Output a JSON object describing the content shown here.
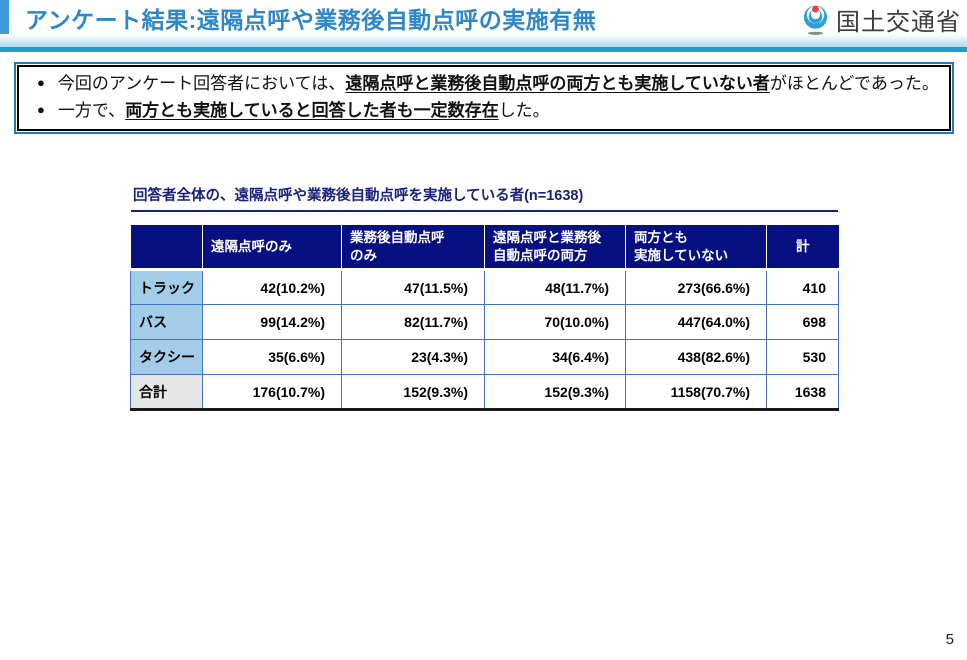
{
  "header": {
    "title": "アンケート結果:遠隔点呼や業務後自動点呼の実施有無",
    "logo_text": "国土交通省"
  },
  "summary": {
    "bullet_char": "●",
    "bullets": [
      {
        "pre": "今回のアンケート回答者においては、",
        "emphasis": "遠隔点呼と業務後自動点呼の両方とも実施していない者",
        "post": "がほとんどであった。"
      },
      {
        "pre": "一方で、",
        "emphasis": "両方とも実施していると回答した者も一定数存在",
        "post": "した。"
      }
    ]
  },
  "table": {
    "caption": "回答者全体の、遠隔点呼や業務後自動点呼を実施している者(n=1638)",
    "columns": [
      "",
      "遠隔点呼のみ",
      "業務後自動点呼\nのみ",
      "遠隔点呼と業務後\n自動点呼の両方",
      "両方とも\n実施していない",
      "計"
    ],
    "rows": [
      {
        "label": "トラック",
        "values": [
          "42(10.2%)",
          "47(11.5%)",
          "48(11.7%)",
          "273(66.6%)",
          "410"
        ],
        "is_total": false
      },
      {
        "label": "バス",
        "values": [
          "99(14.2%)",
          "82(11.7%)",
          "70(10.0%)",
          "447(64.0%)",
          "698"
        ],
        "is_total": false
      },
      {
        "label": "タクシー",
        "values": [
          "35(6.6%)",
          "23(4.3%)",
          "34(6.4%)",
          "438(82.6%)",
          "530"
        ],
        "is_total": false
      },
      {
        "label": "合計",
        "values": [
          "176(10.7%)",
          "152(9.3%)",
          "152(9.3%)",
          "1158(70.7%)",
          "1638"
        ],
        "is_total": true
      }
    ]
  },
  "colors": {
    "title_blue": "#2e87c8",
    "band_line_blue": "#1f9dcf",
    "table_header_navy": "#061080",
    "row_label_blue": "#a3cce9",
    "total_label_gray": "#e7e6e6",
    "cell_border_blue": "#4472c4",
    "summary_border_blue": "#2e75b6",
    "logo_blue": "#2f9fd8",
    "logo_red": "#e8433a"
  },
  "page": {
    "number": "5"
  }
}
